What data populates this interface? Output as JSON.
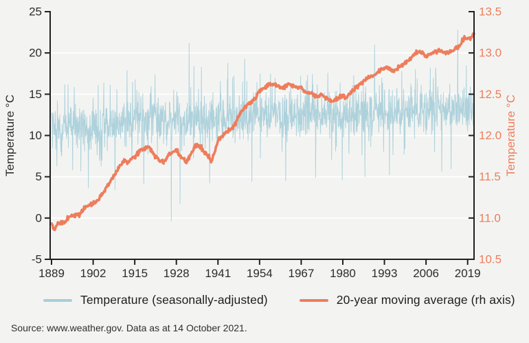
{
  "source_note": "Source: www.weather.gov. Data as at 14 October 2021.",
  "colors": {
    "background": "#f3f4f2",
    "axis": "#1f1f1f",
    "grid": "#ffffff",
    "text": "#2b2b2b",
    "temperature_series": "#a8ceda",
    "moving_average_series": "#ee7d5c"
  },
  "chart_data": {
    "type": "line",
    "title": "",
    "grid": "horizontal-white-lines",
    "legend_position": "bottom",
    "x_axis": {
      "ticks": [
        1889,
        1902,
        1915,
        1928,
        1941,
        1954,
        1967,
        1980,
        1993,
        2006,
        2019
      ],
      "range": [
        1889,
        2021
      ]
    },
    "left_axis": {
      "label": "Temperature °C",
      "ticks": [
        -5,
        0,
        5,
        10,
        15,
        20,
        25
      ],
      "range": [
        -5,
        25
      ],
      "gridline_ticks": [
        0,
        5,
        10,
        15,
        20
      ]
    },
    "right_axis": {
      "label": "Temperature °C",
      "ticks": [
        10.5,
        11.0,
        11.5,
        12.0,
        12.5,
        13.0,
        13.5
      ],
      "range": [
        10.5,
        13.5
      ]
    },
    "series": [
      {
        "name": "Temperature (seasonally-adjusted)",
        "axis": "left",
        "style": "thin-noisy-line",
        "frequency": "monthly",
        "start_year": 1889,
        "end_year": 2021,
        "baseline": "follows moving_average values",
        "noise_std_degC": 1.35,
        "excursion_probability": 0.05,
        "excursion_extra_degC": [
          2.2,
          5.4
        ],
        "notable_spikes": [
          [
            1893.2,
            16.2
          ],
          [
            1896.1,
            15.9
          ],
          [
            1900.5,
            3.6
          ],
          [
            1905.3,
            16.4
          ],
          [
            1908.8,
            3.4
          ],
          [
            1912.6,
            17.9
          ],
          [
            1915.2,
            16.8
          ],
          [
            1917.8,
            4.1
          ],
          [
            1921.3,
            17.4
          ],
          [
            1926.4,
            -0.4
          ],
          [
            1929.2,
            1.7
          ],
          [
            1932.0,
            21.2
          ],
          [
            1933.5,
            18.4
          ],
          [
            1935.8,
            18.3
          ],
          [
            1938.4,
            4.2
          ],
          [
            1944.1,
            18.8
          ],
          [
            1949.3,
            19.3
          ],
          [
            1951.6,
            4.4
          ],
          [
            1957.4,
            17.5
          ],
          [
            1962.2,
            4.5
          ],
          [
            1966.8,
            17.2
          ],
          [
            1971.5,
            4.9
          ],
          [
            1975.3,
            17.6
          ],
          [
            1979.8,
            4.6
          ],
          [
            1983.4,
            17.3
          ],
          [
            1986.9,
            5.0
          ],
          [
            1989.9,
            21.0
          ],
          [
            1994.6,
            5.2
          ],
          [
            1998.4,
            17.8
          ],
          [
            2002.7,
            18.0
          ],
          [
            2007.3,
            18.2
          ],
          [
            2010.9,
            5.6
          ],
          [
            2013.8,
            5.9
          ],
          [
            2015.9,
            22.8
          ],
          [
            2018.6,
            18.5
          ],
          [
            2020.3,
            14.9
          ]
        ]
      },
      {
        "name": "20-year moving average (rh axis)",
        "axis": "right",
        "style": "thick-smooth-line",
        "points": [
          [
            1889,
            10.92
          ],
          [
            1890,
            10.87
          ],
          [
            1891,
            10.94
          ],
          [
            1893,
            10.94
          ],
          [
            1894,
            11.0
          ],
          [
            1896,
            11.03
          ],
          [
            1898,
            11.05
          ],
          [
            1899,
            11.12
          ],
          [
            1901,
            11.16
          ],
          [
            1903,
            11.2
          ],
          [
            1905,
            11.3
          ],
          [
            1907,
            11.42
          ],
          [
            1909,
            11.55
          ],
          [
            1911,
            11.67
          ],
          [
            1912,
            11.7
          ],
          [
            1913,
            11.68
          ],
          [
            1915,
            11.74
          ],
          [
            1917,
            11.83
          ],
          [
            1919,
            11.86
          ],
          [
            1920,
            11.83
          ],
          [
            1922,
            11.72
          ],
          [
            1924,
            11.68
          ],
          [
            1926,
            11.78
          ],
          [
            1928,
            11.82
          ],
          [
            1929,
            11.76
          ],
          [
            1931,
            11.68
          ],
          [
            1933,
            11.8
          ],
          [
            1934,
            11.87
          ],
          [
            1935,
            11.88
          ],
          [
            1937,
            11.79
          ],
          [
            1939,
            11.7
          ],
          [
            1940,
            11.8
          ],
          [
            1941,
            11.95
          ],
          [
            1943,
            12.02
          ],
          [
            1946,
            12.11
          ],
          [
            1948,
            12.27
          ],
          [
            1950,
            12.36
          ],
          [
            1952,
            12.42
          ],
          [
            1954,
            12.53
          ],
          [
            1956,
            12.6
          ],
          [
            1958,
            12.63
          ],
          [
            1960,
            12.6
          ],
          [
            1961,
            12.57
          ],
          [
            1963,
            12.62
          ],
          [
            1965,
            12.6
          ],
          [
            1967,
            12.58
          ],
          [
            1968,
            12.53
          ],
          [
            1970,
            12.52
          ],
          [
            1972,
            12.46
          ],
          [
            1973,
            12.49
          ],
          [
            1975,
            12.45
          ],
          [
            1977,
            12.41
          ],
          [
            1979,
            12.46
          ],
          [
            1980,
            12.48
          ],
          [
            1981,
            12.45
          ],
          [
            1983,
            12.54
          ],
          [
            1985,
            12.62
          ],
          [
            1988,
            12.7
          ],
          [
            1990,
            12.74
          ],
          [
            1992,
            12.8
          ],
          [
            1994,
            12.82
          ],
          [
            1996,
            12.78
          ],
          [
            1999,
            12.87
          ],
          [
            2001,
            12.92
          ],
          [
            2003,
            13.01
          ],
          [
            2004,
            13.02
          ],
          [
            2006,
            12.96
          ],
          [
            2008,
            13.0
          ],
          [
            2010,
            13.03
          ],
          [
            2012,
            12.99
          ],
          [
            2014,
            13.02
          ],
          [
            2016,
            13.07
          ],
          [
            2017,
            13.12
          ],
          [
            2018,
            13.2
          ],
          [
            2019,
            13.16
          ],
          [
            2020,
            13.19
          ],
          [
            2021,
            13.23
          ]
        ]
      }
    ]
  }
}
